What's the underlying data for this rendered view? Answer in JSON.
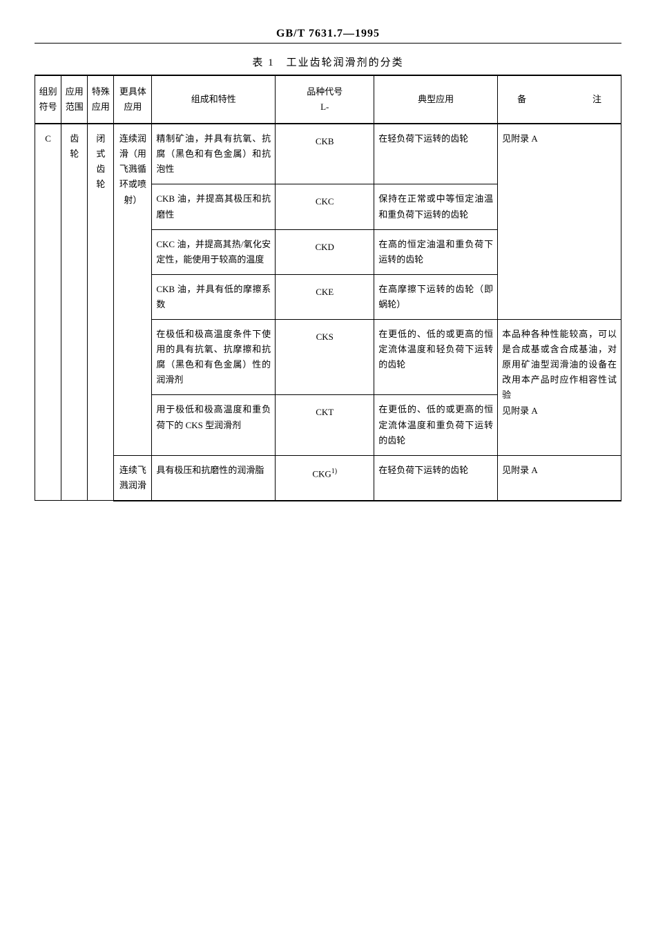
{
  "doc_code": "GB/T 7631.7—1995",
  "table_title": "表 1　工业齿轮润滑剂的分类",
  "headers": {
    "symbol": "组别符号",
    "scope": "应用范围",
    "special": "特殊应用",
    "detail": "更具体应用",
    "composition": "组成和特性",
    "code_line1": "品种代号",
    "code_line2": "L-",
    "typical": "典型应用",
    "notes_a": "备",
    "notes_b": "注"
  },
  "body": {
    "symbol": "C",
    "scope": "齿轮",
    "special": "闭式齿轮",
    "detail1": "连续润滑（用飞溅循环或喷射）",
    "detail2": "连续飞溅润滑",
    "rows": [
      {
        "composition": "精制矿油，并具有抗氧、抗腐（黑色和有色金属）和抗泡性",
        "code": "CKB",
        "application": "在轻负荷下运转的齿轮"
      },
      {
        "composition": "CKB 油，并提高其极压和抗磨性",
        "code": "CKC",
        "application": "保持在正常或中等恒定油温和重负荷下运转的齿轮"
      },
      {
        "composition": "CKC 油，并提高其热/氧化安定性，能使用于较高的温度",
        "code": "CKD",
        "application": "在高的恒定油温和重负荷下运转的齿轮"
      },
      {
        "composition": "CKB 油，并具有低的摩擦系数",
        "code": "CKE",
        "application": "在高摩擦下运转的齿轮（即蜗轮）"
      },
      {
        "composition": "在极低和极高温度条件下使用的具有抗氧、抗摩擦和抗腐（黑色和有色金属）性的润滑剂",
        "code": "CKS",
        "application": "在更低的、低的或更高的恒定流体温度和轻负荷下运转的齿轮"
      },
      {
        "composition": "用于极低和极高温度和重负荷下的 CKS 型润滑剂",
        "code": "CKT",
        "application": "在更低的、低的或更高的恒定流体温度和重负荷下运转的齿轮"
      },
      {
        "composition": "具有极压和抗磨性的润滑脂",
        "code_html": "CKG<sup>1)</sup>",
        "application": "在轻负荷下运转的齿轮"
      }
    ],
    "note_group1": "见附录 A",
    "note_group2_line1": "本品种各种性能较高，可以是合成基或含合成基油，对原用矿油型润滑油的设备在改用本产品时应作相容性试验",
    "note_group2_line2": "见附录 A",
    "note_group3": "见附录 A"
  }
}
